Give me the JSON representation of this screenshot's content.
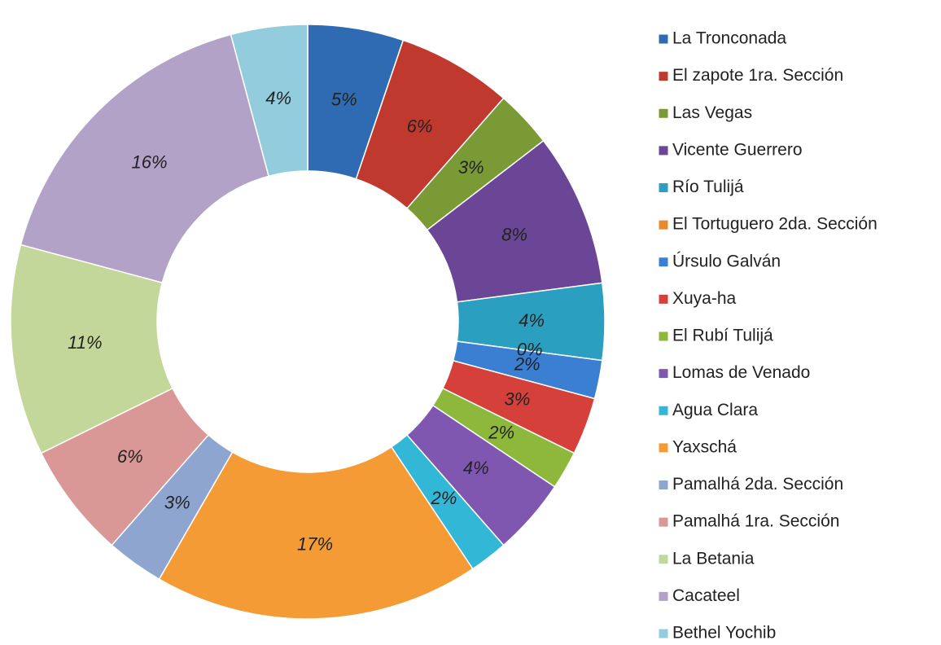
{
  "chart_data": {
    "type": "pie",
    "donut": true,
    "categories": [
      "La Tronconada",
      "El zapote 1ra. Sección",
      "Las Vegas",
      "Vicente Guerrero",
      "Río Tulijá",
      "El Tortuguero 2da. Sección",
      "Úrsulo Galván",
      "Xuya-ha",
      "El Rubí Tulijá",
      "Lomas de Venado",
      "Agua Clara",
      "Yaxschá",
      "Pamalhá 2da. Sección",
      "Pamalhá 1ra. Sección",
      "La Betania",
      "Cacateel",
      "Bethel Yochib"
    ],
    "values": [
      5,
      6,
      3,
      8,
      4,
      0,
      2,
      3,
      2,
      4,
      2,
      17,
      3,
      6,
      11,
      16,
      4
    ],
    "value_labels": [
      "5%",
      "6%",
      "3%",
      "8%",
      "4%",
      "0%",
      "2%",
      "3%",
      "2%",
      "4%",
      "2%",
      "17%",
      "3%",
      "6%",
      "11%",
      "16%",
      "4%"
    ],
    "colors": [
      "#2f6bb3",
      "#c0392f",
      "#7a9a35",
      "#6b4596",
      "#2a9fbf",
      "#e8892c",
      "#3a7fd1",
      "#d6403b",
      "#8db83c",
      "#8057b0",
      "#32b7d6",
      "#f59b35",
      "#8ea6cf",
      "#d99896",
      "#c4d79b",
      "#b3a2c7",
      "#93cddd"
    ],
    "legend": "right"
  }
}
